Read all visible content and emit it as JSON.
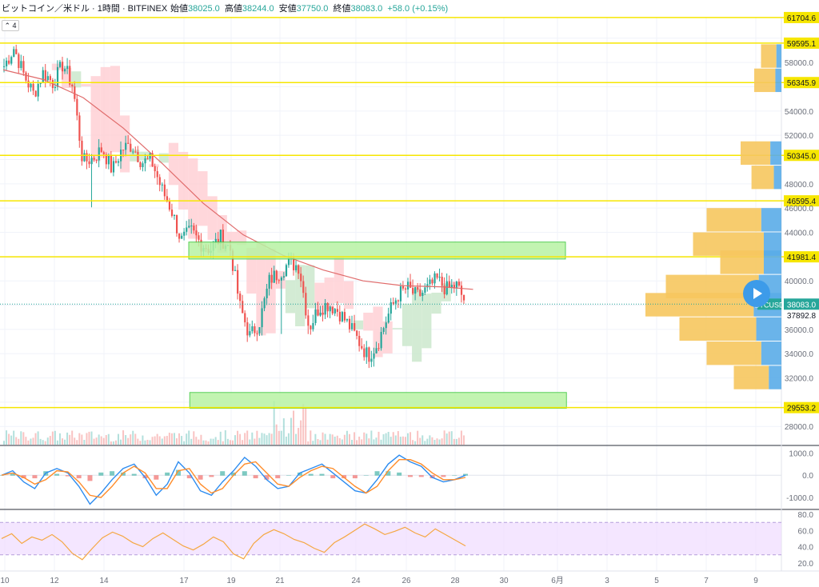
{
  "header": {
    "symbol": "ビットコイン／米ドル · 1時間 · BITFINEX",
    "open_label": "始値",
    "open": "38025.0",
    "high_label": "高値",
    "high": "38244.0",
    "low_label": "安値",
    "low": "37750.0",
    "close_label": "終値",
    "close": "38083.0",
    "change": "+58.0 (+0.15%)",
    "collapse_label": "4"
  },
  "colors": {
    "up": "#26a69a",
    "down": "#ef5350",
    "hline": "#f6e600",
    "zone_fill": "#b8f3a4",
    "zone_stroke": "#3cc73c",
    "ma": "#e06b6b",
    "cloud_up": "#c8e6c9",
    "cloud_down": "#ffcdd2",
    "vp_up": "#5aace8",
    "vp_down": "#f6c75e",
    "macd": "#2d8cf0",
    "signal": "#ff8c2a",
    "rsi": "#f5a742",
    "rsi_band": "#f0dcff"
  },
  "chart_data": [
    {
      "type": "candlestick",
      "title": "ビットコイン／米ドル · 1時間 · BITFINEX",
      "x_ticks": [
        "10",
        "12",
        "14",
        "17",
        "19",
        "21",
        "24",
        "26",
        "28",
        "30",
        "6月",
        "3",
        "5",
        "7",
        "9"
      ],
      "y_ticks": [
        28000,
        30000,
        32000,
        34000,
        36000,
        38000,
        40000,
        42000,
        44000,
        46000,
        48000,
        50000,
        52000,
        54000,
        56000,
        58000,
        60000
      ],
      "ylim": [
        26500,
        61700
      ],
      "price_path": [
        [
          0,
          57700
        ],
        [
          1,
          59200
        ],
        [
          2,
          57000
        ],
        [
          3,
          55400
        ],
        [
          4,
          57200
        ],
        [
          5,
          56300
        ],
        [
          6,
          57900
        ],
        [
          7,
          56000
        ],
        [
          8,
          49800
        ],
        [
          9,
          50100
        ],
        [
          10,
          50900
        ],
        [
          11,
          49100
        ],
        [
          12,
          50900
        ],
        [
          13,
          51200
        ],
        [
          14,
          49800
        ],
        [
          15,
          49900
        ],
        [
          16,
          47600
        ],
        [
          17,
          45900
        ],
        [
          18,
          43300
        ],
        [
          19,
          44100
        ],
        [
          20,
          43100
        ],
        [
          21,
          42600
        ],
        [
          22,
          43600
        ],
        [
          23,
          42600
        ],
        [
          24,
          37800
        ],
        [
          25,
          35400
        ],
        [
          26,
          36700
        ],
        [
          27,
          40100
        ],
        [
          28,
          40700
        ],
        [
          29,
          41500
        ],
        [
          30,
          41200
        ],
        [
          31,
          36100
        ],
        [
          32,
          37800
        ],
        [
          33,
          38100
        ],
        [
          34,
          37500
        ],
        [
          35,
          36400
        ],
        [
          36,
          35100
        ],
        [
          37,
          33800
        ],
        [
          38,
          34900
        ],
        [
          39,
          37100
        ],
        [
          40,
          38800
        ],
        [
          41,
          39400
        ],
        [
          42,
          38700
        ],
        [
          43,
          39300
        ],
        [
          44,
          40100
        ],
        [
          45,
          39300
        ],
        [
          46,
          39600
        ],
        [
          47,
          38100
        ]
      ],
      "moving_average": [
        [
          0,
          57400
        ],
        [
          4,
          56600
        ],
        [
          8,
          55100
        ],
        [
          12,
          52600
        ],
        [
          16,
          49600
        ],
        [
          20,
          46400
        ],
        [
          24,
          43800
        ],
        [
          28,
          42100
        ],
        [
          32,
          40900
        ],
        [
          36,
          40000
        ],
        [
          40,
          39600
        ],
        [
          44,
          39500
        ],
        [
          47,
          39300
        ]
      ],
      "horizontal_lines": [
        61704.6,
        59595.1,
        56345.9,
        50345.0,
        46595.4,
        41981.4,
        29553.2
      ],
      "horizontal_line_labels": [
        "61704.6",
        "59595.1",
        "56345.9",
        "50345.0",
        "46595.4",
        "41981.4",
        "29553.2"
      ],
      "current_price_label": "38083.0",
      "current_price_tag": "BTCUSD",
      "second_price_label": "37892.8",
      "zones": [
        {
          "name": "resistance-zone",
          "x": [
            17.2,
            28.0
          ],
          "y": [
            41800,
            43200
          ]
        },
        {
          "name": "support-zone",
          "x": [
            17.3,
            28.1
          ],
          "y": [
            29500,
            30800
          ]
        }
      ],
      "volume_profile": [
        {
          "price": 58500,
          "buy": 0.1,
          "sell": 0.15
        },
        {
          "price": 56500,
          "buy": 0.12,
          "sell": 0.2
        },
        {
          "price": 50500,
          "buy": 0.22,
          "sell": 0.3
        },
        {
          "price": 48500,
          "buy": 0.15,
          "sell": 0.22
        },
        {
          "price": 45000,
          "buy": 0.4,
          "sell": 0.55
        },
        {
          "price": 43000,
          "buy": 0.35,
          "sell": 0.65
        },
        {
          "price": 41500,
          "buy": 0.35,
          "sell": 0.45
        },
        {
          "price": 39500,
          "buy": 0.45,
          "sell": 0.85
        },
        {
          "price": 38000,
          "buy": 0.55,
          "sell": 1.0
        },
        {
          "price": 36000,
          "buy": 0.5,
          "sell": 0.75
        },
        {
          "price": 34000,
          "buy": 0.4,
          "sell": 0.55
        },
        {
          "price": 32000,
          "buy": 0.25,
          "sell": 0.35
        }
      ]
    },
    {
      "type": "line",
      "title": "MACD",
      "y_ticks": [
        1000.0,
        0.0,
        -1000.0
      ],
      "y_tick_labels": [
        "1000.0",
        "0.0",
        "-1000.0"
      ],
      "ylim": [
        -1500,
        1300
      ],
      "series": [
        {
          "values": [
            0,
            200,
            -300,
            -600,
            100,
            300,
            100,
            -500,
            -1300,
            -800,
            -200,
            300,
            500,
            -100,
            -900,
            -400,
            600,
            100,
            -700,
            -900,
            -300,
            200,
            800,
            400,
            -200,
            -600,
            -500,
            100,
            300,
            500,
            100,
            -300,
            -700,
            -800,
            -200,
            500,
            900,
            600,
            400,
            -100,
            -300,
            -200,
            0
          ]
        },
        {
          "values": [
            0,
            100,
            -100,
            -400,
            -200,
            200,
            150,
            -300,
            -900,
            -1000,
            -500,
            100,
            400,
            100,
            -600,
            -600,
            200,
            300,
            -400,
            -800,
            -600,
            0,
            500,
            600,
            100,
            -400,
            -500,
            -100,
            200,
            400,
            300,
            -100,
            -500,
            -800,
            -500,
            200,
            700,
            700,
            500,
            100,
            -200,
            -200,
            -100
          ]
        }
      ]
    },
    {
      "type": "line",
      "title": "RSI",
      "y_ticks": [
        80.0,
        60.0,
        40.0,
        20.0
      ],
      "y_tick_labels": [
        "80.0",
        "60.0",
        "40.0",
        "20.0"
      ],
      "ylim": [
        10,
        85
      ],
      "band": [
        30,
        70
      ],
      "series": [
        {
          "values": [
            50,
            56,
            44,
            52,
            48,
            55,
            46,
            32,
            24,
            38,
            51,
            58,
            53,
            45,
            40,
            50,
            57,
            49,
            41,
            36,
            43,
            52,
            46,
            31,
            25,
            44,
            55,
            61,
            56,
            49,
            45,
            38,
            33,
            45,
            52,
            60,
            68,
            62,
            55,
            59,
            64,
            57,
            52,
            62,
            55,
            48,
            41
          ]
        }
      ]
    }
  ]
}
